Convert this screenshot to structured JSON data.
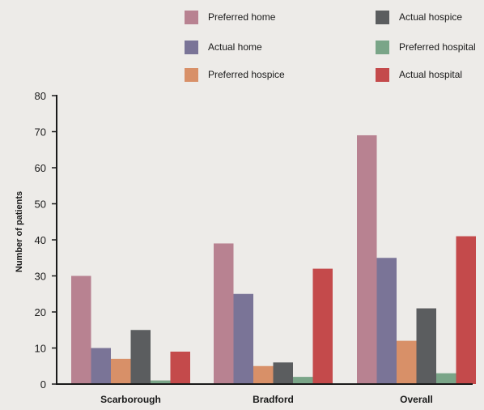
{
  "chart_data": {
    "type": "bar",
    "title": "",
    "xlabel": "",
    "ylabel": "Number of patients",
    "ylim": [
      0,
      80
    ],
    "yticks": [
      0,
      10,
      20,
      30,
      40,
      50,
      60,
      70,
      80
    ],
    "grid": false,
    "legend_position": "top",
    "categories": [
      "Scarborough",
      "Bradford",
      "Overall"
    ],
    "series": [
      {
        "name": "Preferred home",
        "color": "#b88291",
        "values": [
          30,
          39,
          69
        ]
      },
      {
        "name": "Actual home",
        "color": "#7a7497",
        "values": [
          10,
          25,
          35
        ]
      },
      {
        "name": "Preferred hospice",
        "color": "#d89068",
        "values": [
          7,
          5,
          12
        ]
      },
      {
        "name": "Actual hospice",
        "color": "#5b5d5f",
        "values": [
          15,
          6,
          21
        ]
      },
      {
        "name": "Preferred hospital",
        "color": "#7aa588",
        "values": [
          1,
          2,
          3
        ]
      },
      {
        "name": "Actual hospital",
        "color": "#c44a4b",
        "values": [
          9,
          32,
          41
        ]
      }
    ]
  }
}
